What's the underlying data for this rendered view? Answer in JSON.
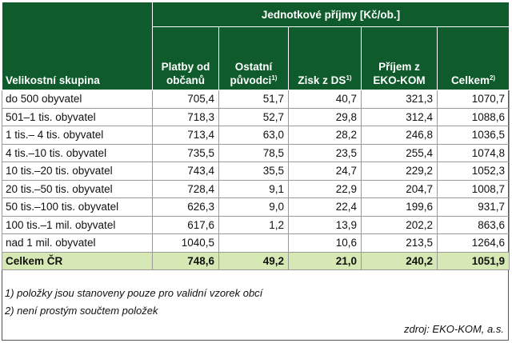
{
  "header": {
    "group_title": "Jednotkové příjmy [Kč/ob.]",
    "columns": [
      {
        "label": "Velikostní skupina",
        "line2": "",
        "sup": ""
      },
      {
        "label": "Platby od",
        "line2": "občanů",
        "sup": ""
      },
      {
        "label": "Ostatní",
        "line2": "původci",
        "sup": "1)"
      },
      {
        "label": "Zisk z DS",
        "line2": "",
        "sup": "1)"
      },
      {
        "label": "Příjem z",
        "line2": "EKO-KOM",
        "sup": ""
      },
      {
        "label": "Celkem",
        "line2": "",
        "sup": "2)"
      }
    ]
  },
  "rows": [
    {
      "group": "do 500 obyvatel",
      "platby": "705,4",
      "ostatni": "51,7",
      "zisk": "40,7",
      "eko": "321,3",
      "celkem": "1070,7"
    },
    {
      "group": "501–1 tis. obyvatel",
      "platby": "718,3",
      "ostatni": "52,7",
      "zisk": "29,8",
      "eko": "312,4",
      "celkem": "1088,6"
    },
    {
      "group": "1 tis.– 4 tis. obyvatel",
      "platby": "713,4",
      "ostatni": "63,0",
      "zisk": "28,2",
      "eko": "246,8",
      "celkem": "1036,5"
    },
    {
      "group": "4 tis.–10 tis. obyvatel",
      "platby": "735,5",
      "ostatni": "78,5",
      "zisk": "23,5",
      "eko": "255,4",
      "celkem": "1074,8"
    },
    {
      "group": "10 tis.–20 tis. obyvatel",
      "platby": "743,4",
      "ostatni": "35,5",
      "zisk": "24,7",
      "eko": "229,2",
      "celkem": "1052,3"
    },
    {
      "group": "20 tis.–50 tis. obyvatel",
      "platby": "728,4",
      "ostatni": "9,1",
      "zisk": "22,9",
      "eko": "204,7",
      "celkem": "1008,7"
    },
    {
      "group": "50 tis.–100 tis. obyvatel",
      "platby": "626,3",
      "ostatni": "9,0",
      "zisk": "22,4",
      "eko": "199,6",
      "celkem": "931,7"
    },
    {
      "group": "100 tis.–1 mil. obyvatel",
      "platby": "617,6",
      "ostatni": "1,2",
      "zisk": "13,9",
      "eko": "202,2",
      "celkem": "863,6"
    },
    {
      "group": "nad 1 mil. obyvatel",
      "platby": "1040,5",
      "ostatni": "",
      "zisk": "10,6",
      "eko": "213,5",
      "celkem": "1264,6"
    }
  ],
  "total": {
    "group": "Celkem ČR",
    "platby": "748,6",
    "ostatni": "49,2",
    "zisk": "21,0",
    "eko": "240,2",
    "celkem": "1051,9"
  },
  "notes": [
    "1) položky jsou stanoveny pouze pro validní vzorek obcí",
    "2) není prostým součtem položek"
  ],
  "source": "zdroj: EKO-KOM, a.s.",
  "colors": {
    "header_bg": "#0f5b2c",
    "total_bg": "#d6e8b3"
  }
}
